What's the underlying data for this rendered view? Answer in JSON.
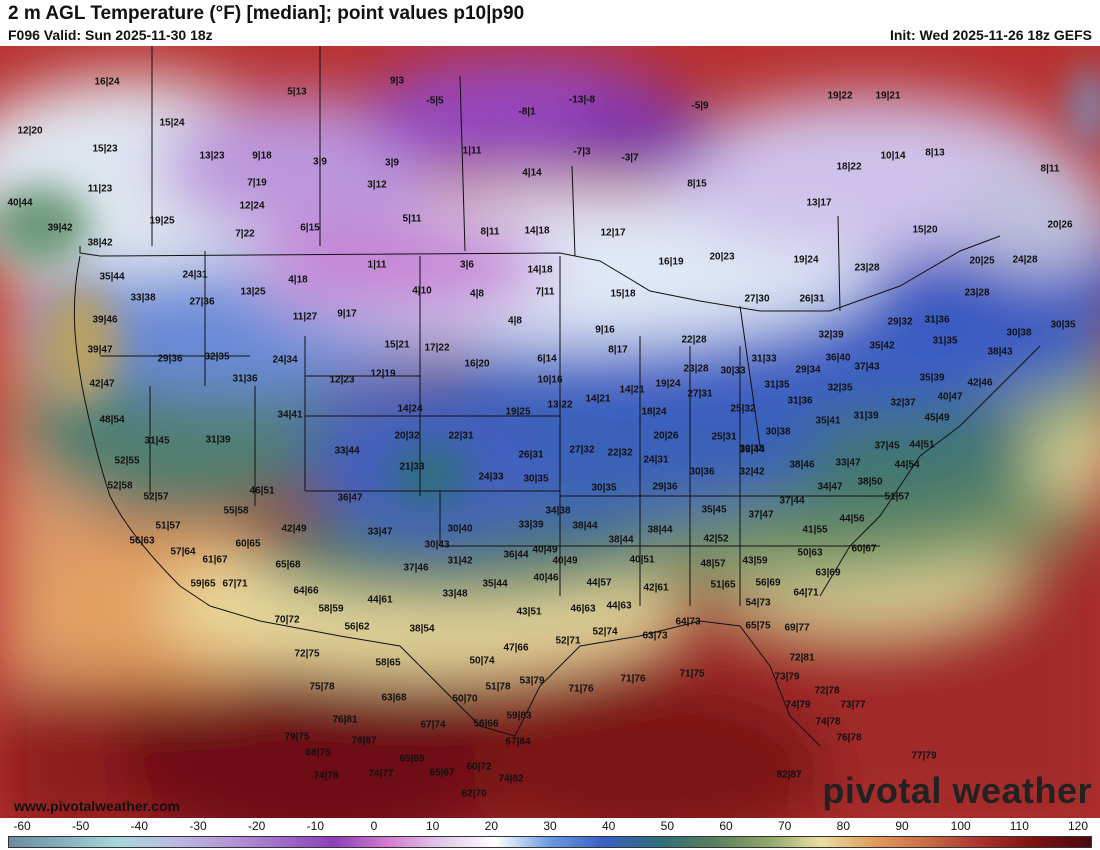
{
  "header": {
    "title": "2 m AGL Temperature (°F) [median]; point values p10|p90",
    "valid": "F096 Valid: Sun 2025-11-30 18z",
    "init": "Init: Wed 2025-11-26 18z GEFS"
  },
  "footer": {
    "site": "www.pivotalweather.com",
    "brand": "pivotal weather"
  },
  "colorbar": {
    "ticks": [
      "-60",
      "-50",
      "-40",
      "-30",
      "-20",
      "-10",
      "0",
      "10",
      "20",
      "30",
      "40",
      "50",
      "60",
      "70",
      "80",
      "90",
      "100",
      "110",
      "120"
    ],
    "colors": [
      "#6a8ca0",
      "#86b0bc",
      "#a7d7dc",
      "#bcbce2",
      "#b49ad8",
      "#a26ccb",
      "#8c3fb8",
      "#d47ad0",
      "#e0c9ea",
      "#ffffff",
      "#6a9ae0",
      "#3a5fc6",
      "#2e6e7a",
      "#577f5d",
      "#8ea36a",
      "#e8e0a0",
      "#e39a5c",
      "#c96a44",
      "#a8312c",
      "#7a1010",
      "#4a0a12"
    ]
  },
  "points": [
    {
      "t": "16|24"
    },
    {
      "t": "12|20"
    },
    {
      "t": "15|23"
    },
    {
      "t": "11|23"
    },
    {
      "t": "40|44"
    },
    {
      "t": "39|42"
    },
    {
      "t": "38|42"
    },
    {
      "t": "15|24"
    },
    {
      "t": "13|23"
    },
    {
      "t": "9|18"
    },
    {
      "t": "7|19"
    },
    {
      "t": "12|24"
    },
    {
      "t": "19|25"
    },
    {
      "t": "7|22"
    },
    {
      "t": "5|13"
    },
    {
      "t": "3|9"
    },
    {
      "t": "3|9"
    },
    {
      "t": "3|12"
    },
    {
      "t": "6|15"
    },
    {
      "t": "5|11"
    },
    {
      "t": "8|11"
    },
    {
      "t": "9|3"
    },
    {
      "t": "-5|5"
    },
    {
      "t": "1|11"
    },
    {
      "t": "-8|1"
    },
    {
      "t": "-13|-8"
    },
    {
      "t": "-7|3"
    },
    {
      "t": "-3|7"
    },
    {
      "t": "-5|9"
    },
    {
      "t": "4|14"
    },
    {
      "t": "14|18"
    },
    {
      "t": "12|17"
    },
    {
      "t": "8|15"
    },
    {
      "t": "19|22"
    },
    {
      "t": "19|21"
    },
    {
      "t": "10|14"
    },
    {
      "t": "8|13"
    },
    {
      "t": "18|22"
    },
    {
      "t": "8|11"
    },
    {
      "t": "13|17"
    },
    {
      "t": "15|20"
    },
    {
      "t": "20|26"
    },
    {
      "t": "35|44"
    },
    {
      "t": "24|31"
    },
    {
      "t": "27|36"
    },
    {
      "t": "13|25"
    },
    {
      "t": "4|18"
    },
    {
      "t": "11|27"
    },
    {
      "t": "9|17"
    },
    {
      "t": "1|11"
    },
    {
      "t": "4|10"
    },
    {
      "t": "3|6"
    },
    {
      "t": "4|8"
    },
    {
      "t": "14|18"
    },
    {
      "t": "7|11"
    },
    {
      "t": "4|8"
    },
    {
      "t": "16|19"
    },
    {
      "t": "20|23"
    },
    {
      "t": "15|18"
    },
    {
      "t": "19|24"
    },
    {
      "t": "23|28"
    },
    {
      "t": "20|25"
    },
    {
      "t": "24|28"
    },
    {
      "t": "23|28"
    },
    {
      "t": "33|38"
    },
    {
      "t": "39|46"
    },
    {
      "t": "39|47"
    },
    {
      "t": "42|47"
    },
    {
      "t": "29|36"
    },
    {
      "t": "32|35"
    },
    {
      "t": "31|36"
    },
    {
      "t": "24|34"
    },
    {
      "t": "15|21"
    },
    {
      "t": "17|22"
    },
    {
      "t": "12|23"
    },
    {
      "t": "12|19"
    },
    {
      "t": "16|20"
    },
    {
      "t": "6|14"
    },
    {
      "t": "10|16"
    },
    {
      "t": "9|16"
    },
    {
      "t": "8|17"
    },
    {
      "t": "22|28"
    },
    {
      "t": "27|30"
    },
    {
      "t": "26|31"
    },
    {
      "t": "32|39"
    },
    {
      "t": "29|32"
    },
    {
      "t": "31|36"
    },
    {
      "t": "30|38"
    },
    {
      "t": "30|35"
    },
    {
      "t": "48|54"
    },
    {
      "t": "31|45"
    },
    {
      "t": "31|39"
    },
    {
      "t": "34|41"
    },
    {
      "t": "14|24"
    },
    {
      "t": "19|25"
    },
    {
      "t": "13|22"
    },
    {
      "t": "14|21"
    },
    {
      "t": "14|21"
    },
    {
      "t": "19|24"
    },
    {
      "t": "18|24"
    },
    {
      "t": "23|28"
    },
    {
      "t": "30|33"
    },
    {
      "t": "31|33"
    },
    {
      "t": "27|31"
    },
    {
      "t": "31|35"
    },
    {
      "t": "29|34"
    },
    {
      "t": "36|40"
    },
    {
      "t": "35|42"
    },
    {
      "t": "37|43"
    },
    {
      "t": "31|35"
    },
    {
      "t": "38|43"
    },
    {
      "t": "35|39"
    },
    {
      "t": "42|46"
    },
    {
      "t": "32|35"
    },
    {
      "t": "31|36"
    },
    {
      "t": "32|37"
    },
    {
      "t": "40|47"
    },
    {
      "t": "52|55"
    },
    {
      "t": "52|58"
    },
    {
      "t": "52|57"
    },
    {
      "t": "33|44"
    },
    {
      "t": "20|32"
    },
    {
      "t": "22|31"
    },
    {
      "t": "21|33"
    },
    {
      "t": "26|31"
    },
    {
      "t": "27|32"
    },
    {
      "t": "22|32"
    },
    {
      "t": "24|31"
    },
    {
      "t": "20|26"
    },
    {
      "t": "25|31"
    },
    {
      "t": "25|32"
    },
    {
      "t": "30|38"
    },
    {
      "t": "35|41"
    },
    {
      "t": "31|39"
    },
    {
      "t": "37|45"
    },
    {
      "t": "44|51"
    },
    {
      "t": "45|49"
    },
    {
      "t": "36|44"
    },
    {
      "t": "30|38"
    },
    {
      "t": "32|42"
    },
    {
      "t": "38|46"
    },
    {
      "t": "33|47"
    },
    {
      "t": "44|54"
    },
    {
      "t": "38|50"
    },
    {
      "t": "34|47"
    },
    {
      "t": "51|57"
    },
    {
      "t": "46|51"
    },
    {
      "t": "55|58"
    },
    {
      "t": "51|57"
    },
    {
      "t": "56|63"
    },
    {
      "t": "42|49"
    },
    {
      "t": "36|47"
    },
    {
      "t": "24|33"
    },
    {
      "t": "30|35"
    },
    {
      "t": "30|35"
    },
    {
      "t": "29|36"
    },
    {
      "t": "30|36"
    },
    {
      "t": "35|45"
    },
    {
      "t": "37|47"
    },
    {
      "t": "37|44"
    },
    {
      "t": "41|55"
    },
    {
      "t": "44|56"
    },
    {
      "t": "60|67"
    },
    {
      "t": "60|65"
    },
    {
      "t": "57|64"
    },
    {
      "t": "61|67"
    },
    {
      "t": "59|65"
    },
    {
      "t": "67|71"
    },
    {
      "t": "65|68"
    },
    {
      "t": "33|47"
    },
    {
      "t": "30|40"
    },
    {
      "t": "34|38"
    },
    {
      "t": "33|39"
    },
    {
      "t": "38|44"
    },
    {
      "t": "38|44"
    },
    {
      "t": "38|44"
    },
    {
      "t": "30|43"
    },
    {
      "t": "37|46"
    },
    {
      "t": "31|42"
    },
    {
      "t": "36|44"
    },
    {
      "t": "40|49"
    },
    {
      "t": "40|49"
    },
    {
      "t": "42|52"
    },
    {
      "t": "48|57"
    },
    {
      "t": "43|59"
    },
    {
      "t": "50|63"
    },
    {
      "t": "63|69"
    },
    {
      "t": "64|66"
    },
    {
      "t": "58|59"
    },
    {
      "t": "44|61"
    },
    {
      "t": "33|48"
    },
    {
      "t": "35|44"
    },
    {
      "t": "40|46"
    },
    {
      "t": "40|51"
    },
    {
      "t": "44|57"
    },
    {
      "t": "51|65"
    },
    {
      "t": "56|69"
    },
    {
      "t": "64|71"
    },
    {
      "t": "70|72"
    },
    {
      "t": "56|62"
    },
    {
      "t": "38|54"
    },
    {
      "t": "43|51"
    },
    {
      "t": "46|63"
    },
    {
      "t": "44|63"
    },
    {
      "t": "42|61"
    },
    {
      "t": "54|73"
    },
    {
      "t": "72|75"
    },
    {
      "t": "58|65"
    },
    {
      "t": "52|71"
    },
    {
      "t": "52|74"
    },
    {
      "t": "63|73"
    },
    {
      "t": "64|73"
    },
    {
      "t": "65|75"
    },
    {
      "t": "69|77"
    },
    {
      "t": "47|66"
    },
    {
      "t": "50|74"
    },
    {
      "t": "72|81"
    },
    {
      "t": "75|78"
    },
    {
      "t": "63|68"
    },
    {
      "t": "51|78"
    },
    {
      "t": "53|79"
    },
    {
      "t": "71|76"
    },
    {
      "t": "71|76"
    },
    {
      "t": "71|75"
    },
    {
      "t": "73|79"
    },
    {
      "t": "72|78"
    },
    {
      "t": "74|79"
    },
    {
      "t": "73|77"
    },
    {
      "t": "50|70"
    },
    {
      "t": "76|81"
    },
    {
      "t": "67|74"
    },
    {
      "t": "56|66"
    },
    {
      "t": "59|83"
    },
    {
      "t": "74|78"
    },
    {
      "t": "79|75"
    },
    {
      "t": "78|87"
    },
    {
      "t": "67|84"
    },
    {
      "t": "68|75"
    },
    {
      "t": "65|69"
    },
    {
      "t": "76|78"
    },
    {
      "t": "77|79"
    },
    {
      "t": "74|78"
    },
    {
      "t": "74|77"
    },
    {
      "t": "65|67"
    },
    {
      "t": "60|72"
    },
    {
      "t": "74|82"
    },
    {
      "t": "82|87"
    },
    {
      "t": "62|70"
    }
  ]
}
